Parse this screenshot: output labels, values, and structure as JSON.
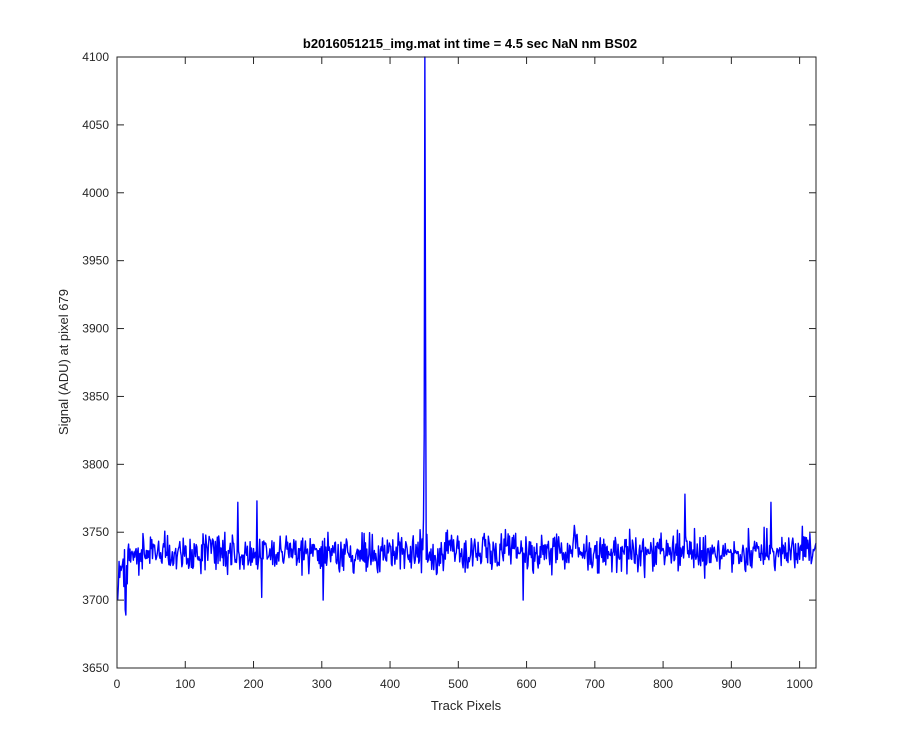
{
  "chart_data": {
    "type": "line",
    "title": "b2016051215_img.mat int time = 4.5 sec  NaN nm BS02",
    "xlabel": "Track Pixels",
    "ylabel": "Signal (ADU) at pixel 679",
    "xlim": [
      0,
      1024
    ],
    "ylim": [
      3650,
      4100
    ],
    "xticks": [
      0,
      100,
      200,
      300,
      400,
      500,
      600,
      700,
      800,
      900,
      1000
    ],
    "yticks": [
      3650,
      3700,
      3750,
      3800,
      3850,
      3900,
      3950,
      4000,
      4050,
      4100
    ],
    "grid": false,
    "legend": "none",
    "series": [
      {
        "color": "#0000ff",
        "baseline_mean": 3735,
        "noise_range": [
          3689,
          3778
        ],
        "samples": 1024,
        "x": [
          1,
          5,
          10,
          12,
          13,
          15,
          20,
          30,
          50,
          100,
          150,
          177,
          200,
          205,
          212,
          300,
          302,
          400,
          447,
          449,
          450,
          451,
          452,
          453,
          455,
          500,
          595,
          650,
          670,
          700,
          800,
          832,
          900,
          958,
          1000,
          1024
        ],
        "y": [
          3700,
          3725,
          3710,
          3693,
          3689,
          3712,
          3728,
          3735,
          3738,
          3740,
          3742,
          3772,
          3738,
          3773,
          3702,
          3725,
          3700,
          3740,
          3745,
          3760,
          3820,
          4100,
          3900,
          3730,
          3728,
          3738,
          3700,
          3735,
          3755,
          3740,
          3738,
          3778,
          3735,
          3772,
          3730,
          3742
        ]
      }
    ]
  }
}
